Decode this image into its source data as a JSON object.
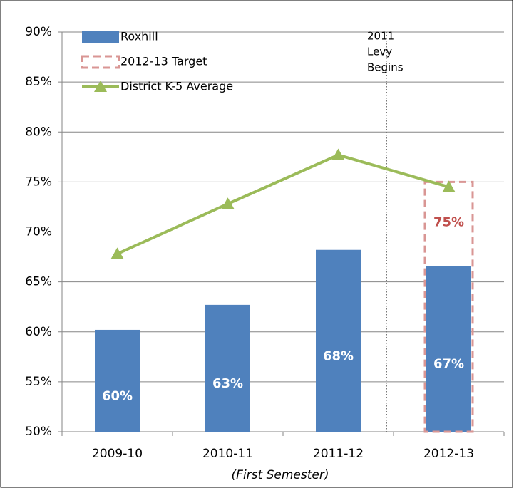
{
  "chart_data": {
    "type": "bar",
    "categories": [
      "2009-10",
      "2010-11",
      "2011-12",
      "2012-13"
    ],
    "x_label": "(First Semester)",
    "series": [
      {
        "name": "Roxhill",
        "type": "bar",
        "color": "#4f81bd",
        "values": [
          60.2,
          62.7,
          68.2,
          66.6
        ],
        "value_labels": [
          "60%",
          "63%",
          "68%",
          "67%"
        ]
      },
      {
        "name": "2012-13 Target",
        "type": "target",
        "color": "#d99694",
        "label_color": "#c0504d",
        "values": [
          null,
          null,
          null,
          75
        ],
        "value_labels": [
          null,
          null,
          null,
          "75%"
        ]
      },
      {
        "name": "District K-5 Average",
        "type": "line",
        "color": "#9bbb59",
        "values": [
          67.8,
          72.8,
          77.7,
          74.5
        ]
      }
    ],
    "annotation": {
      "lines": [
        "2011",
        "Levy",
        "Begins"
      ],
      "between": [
        2,
        3
      ]
    },
    "ylim": [
      50,
      90
    ],
    "yticks": [
      {
        "value": 50,
        "label": "50%"
      },
      {
        "value": 55,
        "label": "55%"
      },
      {
        "value": 60,
        "label": "60%"
      },
      {
        "value": 65,
        "label": "65%"
      },
      {
        "value": 70,
        "label": "70%"
      },
      {
        "value": 75,
        "label": "75%"
      },
      {
        "value": 80,
        "label": "80%"
      },
      {
        "value": 85,
        "label": "85%"
      },
      {
        "value": 90,
        "label": "90%"
      }
    ],
    "grid": true,
    "legend": "top-left"
  }
}
